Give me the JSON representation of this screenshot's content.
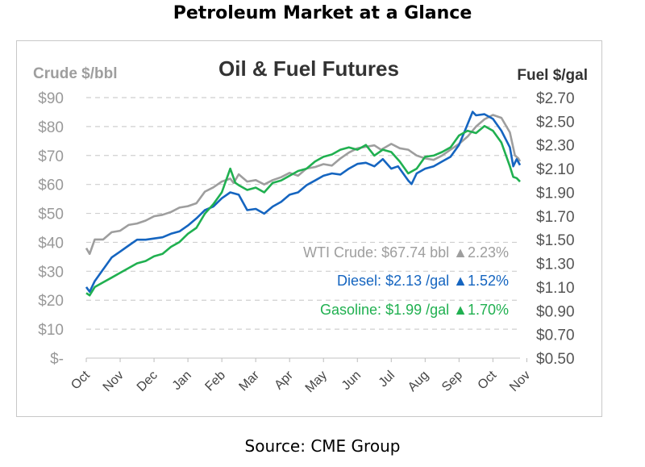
{
  "page": {
    "title": "Petroleum Market at a Glance",
    "source": "Source: CME Group"
  },
  "chart_data": {
    "type": "line",
    "title": "Oil & Fuel Futures",
    "left_axis": {
      "label": "Crude $/bbl",
      "range": [
        0,
        90
      ],
      "ticks": [
        "$-",
        "$10",
        "$20",
        "$30",
        "$40",
        "$50",
        "$60",
        "$70",
        "$80",
        "$90"
      ]
    },
    "right_axis": {
      "label": "Fuel $/gal",
      "range": [
        0.5,
        2.7
      ],
      "ticks": [
        "$0.50",
        "$0.70",
        "$0.90",
        "$1.10",
        "$1.30",
        "$1.50",
        "$1.70",
        "$1.90",
        "$2.10",
        "$2.30",
        "$2.50",
        "$2.70"
      ]
    },
    "x_axis": {
      "range": [
        0,
        12.8
      ],
      "ticks": [
        "Oct",
        "Nov",
        "Dec",
        "Jan",
        "Feb",
        "Mar",
        "Apr",
        "May",
        "Jun",
        "Jul",
        "Aug",
        "Sep",
        "Oct",
        "Nov"
      ]
    },
    "grid": "horizontal dashed",
    "series": [
      {
        "name": "WTI Crude",
        "axis": "left",
        "color": "#9e9e9e",
        "points": [
          [
            0,
            38
          ],
          [
            0.1,
            36
          ],
          [
            0.25,
            41
          ],
          [
            0.5,
            41
          ],
          [
            0.75,
            43.5
          ],
          [
            1.0,
            44
          ],
          [
            1.25,
            46
          ],
          [
            1.5,
            46.5
          ],
          [
            1.75,
            47.5
          ],
          [
            2.0,
            49
          ],
          [
            2.25,
            49.5
          ],
          [
            2.5,
            50.5
          ],
          [
            2.75,
            52
          ],
          [
            3.0,
            52.5
          ],
          [
            3.25,
            53.5
          ],
          [
            3.5,
            57.5
          ],
          [
            3.75,
            59
          ],
          [
            4.0,
            61
          ],
          [
            4.25,
            62
          ],
          [
            4.35,
            60.5
          ],
          [
            4.5,
            63.5
          ],
          [
            4.75,
            61
          ],
          [
            5.0,
            61.5
          ],
          [
            5.25,
            60
          ],
          [
            5.5,
            61.5
          ],
          [
            5.75,
            62.5
          ],
          [
            6.0,
            64
          ],
          [
            6.25,
            63
          ],
          [
            6.5,
            65.5
          ],
          [
            6.75,
            66
          ],
          [
            7.0,
            67
          ],
          [
            7.25,
            66.5
          ],
          [
            7.5,
            69
          ],
          [
            7.75,
            71
          ],
          [
            8.0,
            72.5
          ],
          [
            8.25,
            73
          ],
          [
            8.5,
            73.5
          ],
          [
            8.7,
            72
          ],
          [
            9.0,
            74
          ],
          [
            9.25,
            72.5
          ],
          [
            9.5,
            72
          ],
          [
            9.75,
            70
          ],
          [
            10.0,
            69
          ],
          [
            10.25,
            68.5
          ],
          [
            10.5,
            70
          ],
          [
            10.75,
            72
          ],
          [
            11.0,
            74
          ],
          [
            11.25,
            76.5
          ],
          [
            11.5,
            80
          ],
          [
            11.75,
            82.5
          ],
          [
            12.0,
            84
          ],
          [
            12.25,
            83
          ],
          [
            12.5,
            78
          ],
          [
            12.65,
            70
          ],
          [
            12.75,
            69
          ],
          [
            12.8,
            68
          ]
        ]
      },
      {
        "name": "Diesel",
        "axis": "right",
        "color": "#1565c0",
        "points": [
          [
            0,
            1.1
          ],
          [
            0.1,
            1.06
          ],
          [
            0.25,
            1.15
          ],
          [
            0.5,
            1.25
          ],
          [
            0.75,
            1.35
          ],
          [
            1.0,
            1.4
          ],
          [
            1.25,
            1.45
          ],
          [
            1.5,
            1.5
          ],
          [
            1.75,
            1.5
          ],
          [
            2.0,
            1.51
          ],
          [
            2.25,
            1.52
          ],
          [
            2.5,
            1.55
          ],
          [
            2.75,
            1.57
          ],
          [
            3.0,
            1.62
          ],
          [
            3.25,
            1.68
          ],
          [
            3.5,
            1.75
          ],
          [
            3.75,
            1.78
          ],
          [
            4.0,
            1.85
          ],
          [
            4.25,
            1.9
          ],
          [
            4.5,
            1.88
          ],
          [
            4.75,
            1.75
          ],
          [
            5.0,
            1.76
          ],
          [
            5.25,
            1.72
          ],
          [
            5.5,
            1.78
          ],
          [
            5.75,
            1.82
          ],
          [
            6.0,
            1.88
          ],
          [
            6.25,
            1.9
          ],
          [
            6.5,
            1.96
          ],
          [
            6.75,
            2.0
          ],
          [
            7.0,
            2.04
          ],
          [
            7.25,
            2.06
          ],
          [
            7.5,
            2.05
          ],
          [
            7.75,
            2.1
          ],
          [
            8.0,
            2.14
          ],
          [
            8.25,
            2.15
          ],
          [
            8.5,
            2.12
          ],
          [
            8.75,
            2.18
          ],
          [
            9.0,
            2.1
          ],
          [
            9.2,
            2.12
          ],
          [
            9.5,
            2.0
          ],
          [
            9.6,
            1.97
          ],
          [
            9.75,
            2.06
          ],
          [
            10.0,
            2.1
          ],
          [
            10.25,
            2.12
          ],
          [
            10.5,
            2.16
          ],
          [
            10.75,
            2.2
          ],
          [
            11.0,
            2.3
          ],
          [
            11.2,
            2.44
          ],
          [
            11.4,
            2.58
          ],
          [
            11.5,
            2.55
          ],
          [
            11.75,
            2.56
          ],
          [
            12.0,
            2.52
          ],
          [
            12.25,
            2.42
          ],
          [
            12.5,
            2.28
          ],
          [
            12.6,
            2.12
          ],
          [
            12.7,
            2.18
          ],
          [
            12.8,
            2.13
          ]
        ]
      },
      {
        "name": "Gasoline",
        "axis": "right",
        "color": "#20b050",
        "points": [
          [
            0,
            1.05
          ],
          [
            0.1,
            1.03
          ],
          [
            0.25,
            1.1
          ],
          [
            0.5,
            1.14
          ],
          [
            0.75,
            1.18
          ],
          [
            1.0,
            1.22
          ],
          [
            1.25,
            1.26
          ],
          [
            1.5,
            1.3
          ],
          [
            1.75,
            1.32
          ],
          [
            2.0,
            1.36
          ],
          [
            2.25,
            1.38
          ],
          [
            2.5,
            1.44
          ],
          [
            2.75,
            1.48
          ],
          [
            3.0,
            1.55
          ],
          [
            3.25,
            1.6
          ],
          [
            3.5,
            1.72
          ],
          [
            3.75,
            1.8
          ],
          [
            4.0,
            1.9
          ],
          [
            4.25,
            2.1
          ],
          [
            4.4,
            1.98
          ],
          [
            4.5,
            1.96
          ],
          [
            4.75,
            1.92
          ],
          [
            5.0,
            1.94
          ],
          [
            5.25,
            1.9
          ],
          [
            5.5,
            1.98
          ],
          [
            5.75,
            2.0
          ],
          [
            6.0,
            2.04
          ],
          [
            6.25,
            2.08
          ],
          [
            6.5,
            2.1
          ],
          [
            6.75,
            2.16
          ],
          [
            7.0,
            2.2
          ],
          [
            7.25,
            2.22
          ],
          [
            7.5,
            2.26
          ],
          [
            7.75,
            2.28
          ],
          [
            8.0,
            2.26
          ],
          [
            8.25,
            2.3
          ],
          [
            8.5,
            2.21
          ],
          [
            8.75,
            2.26
          ],
          [
            9.0,
            2.24
          ],
          [
            9.25,
            2.16
          ],
          [
            9.5,
            2.06
          ],
          [
            9.75,
            2.1
          ],
          [
            10.0,
            2.2
          ],
          [
            10.25,
            2.21
          ],
          [
            10.5,
            2.24
          ],
          [
            10.75,
            2.28
          ],
          [
            11.0,
            2.38
          ],
          [
            11.25,
            2.42
          ],
          [
            11.5,
            2.4
          ],
          [
            11.75,
            2.46
          ],
          [
            12.0,
            2.42
          ],
          [
            12.25,
            2.32
          ],
          [
            12.5,
            2.12
          ],
          [
            12.6,
            2.03
          ],
          [
            12.7,
            2.02
          ],
          [
            12.8,
            1.99
          ]
        ]
      }
    ],
    "legend": [
      {
        "label": "WTI Crude:",
        "value": "$67.74 bbl",
        "change": "2.23%",
        "color": "#9e9e9e"
      },
      {
        "label": "Diesel:",
        "value": "$2.13 /gal",
        "change": "1.52%",
        "color": "#1565c0"
      },
      {
        "label": "Gasoline:",
        "value": "$1.99 /gal",
        "change": "1.70%",
        "color": "#20b050"
      }
    ],
    "legend_placement": "bottom-right inside plot",
    "colors": {
      "grid": "#cfcfcf",
      "axis_text": "#999999",
      "title": "#333333"
    }
  }
}
